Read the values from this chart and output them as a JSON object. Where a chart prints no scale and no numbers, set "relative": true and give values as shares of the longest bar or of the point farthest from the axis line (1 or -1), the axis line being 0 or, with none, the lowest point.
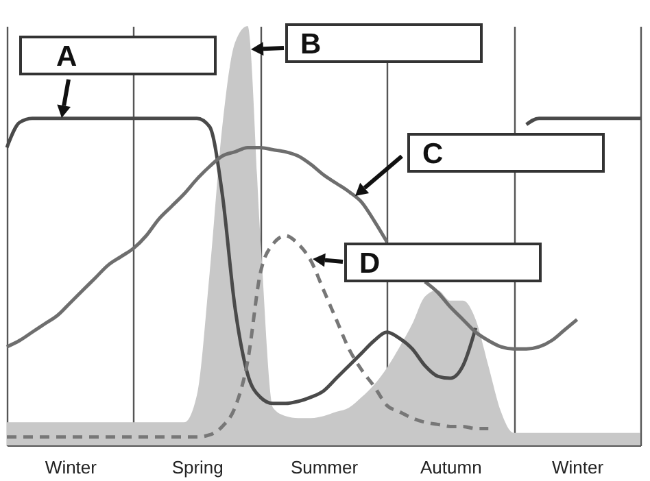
{
  "chart_data": {
    "type": "line",
    "relative": true,
    "grid": "x",
    "categories": [
      null,
      null,
      null,
      null,
      null,
      "Winter",
      null,
      null,
      null,
      null,
      null,
      null,
      null,
      null,
      null,
      "Spring",
      null,
      null,
      null,
      null,
      null,
      null,
      null,
      null,
      null,
      "Summer",
      null,
      null,
      null,
      null,
      null,
      null,
      null,
      null,
      null,
      "Autumn",
      null,
      null,
      null,
      null,
      null,
      null,
      null,
      null,
      null,
      "Winter",
      null,
      null,
      null,
      null,
      null
    ],
    "series": [
      {
        "type": "area",
        "color": "#c8c8c8",
        "values": [
          0.055,
          0.055,
          0.055,
          0.055,
          0.055,
          0.055,
          0.055,
          0.055,
          0.055,
          0.055,
          0.055,
          0.055,
          0.055,
          0.055,
          0.055,
          0.12,
          0.41,
          0.76,
          0.96,
          1,
          0.5,
          0.09,
          0.07,
          0.065,
          0.065,
          0.07,
          0.08,
          0.09,
          0.115,
          0.145,
          0.185,
          0.235,
          0.29,
          0.355,
          0.37,
          0.345,
          0.345,
          0.3,
          0.19,
          0.08,
          0.03,
          0.03,
          0.03,
          0.03,
          0.03,
          0.03,
          0.03,
          0.03,
          0.03,
          0.03,
          0.03
        ]
      },
      {
        "type": "line",
        "color": "#4a4a4a",
        "values": [
          0.71,
          0.77,
          0.78,
          0.78,
          0.78,
          0.78,
          0.78,
          0.78,
          0.78,
          0.78,
          0.78,
          0.78,
          0.78,
          0.78,
          0.78,
          0.78,
          0.76,
          0.6,
          0.33,
          0.17,
          0.115,
          0.1,
          0.1,
          0.105,
          0.115,
          0.13,
          0.16,
          0.19,
          0.22,
          0.25,
          0.27,
          0.255,
          0.23,
          0.19,
          0.165,
          0.16,
          0.19,
          0.28,
          null,
          null,
          null,
          0.765,
          0.78,
          0.78,
          0.78,
          0.78,
          0.78,
          0.78,
          0.78,
          0.78,
          0.78
        ]
      },
      {
        "type": "line",
        "color": "#6e6e6e",
        "values": [
          0.235,
          0.25,
          0.27,
          0.29,
          0.31,
          0.34,
          0.37,
          0.4,
          0.43,
          0.45,
          0.47,
          0.5,
          0.54,
          0.57,
          0.6,
          0.635,
          0.665,
          0.69,
          0.7,
          0.71,
          0.71,
          0.705,
          0.7,
          0.69,
          0.67,
          0.645,
          0.625,
          0.605,
          0.58,
          0.535,
          0.485,
          null,
          null,
          0.39,
          0.365,
          0.33,
          0.3,
          0.27,
          0.25,
          0.235,
          0.23,
          0.23,
          0.235,
          0.25,
          0.275,
          0.3,
          null,
          null,
          null,
          null,
          null
        ]
      },
      {
        "type": "line",
        "color": "#777777",
        "line_style": "dashed",
        "values": [
          0.02,
          0.02,
          0.02,
          0.02,
          0.02,
          0.02,
          0.02,
          0.02,
          0.02,
          0.02,
          0.02,
          0.02,
          0.02,
          0.02,
          0.02,
          0.02,
          0.025,
          0.045,
          0.09,
          0.2,
          0.41,
          0.48,
          0.5,
          0.48,
          0.44,
          0.37,
          0.3,
          0.23,
          0.18,
          0.14,
          0.095,
          0.08,
          0.065,
          0.055,
          0.05,
          0.045,
          0.045,
          0.04,
          0.04,
          null,
          null,
          null,
          null,
          null,
          null,
          null,
          null,
          null,
          null,
          null,
          null
        ]
      }
    ],
    "annotations": [
      "A",
      "B",
      "C",
      "D"
    ]
  }
}
